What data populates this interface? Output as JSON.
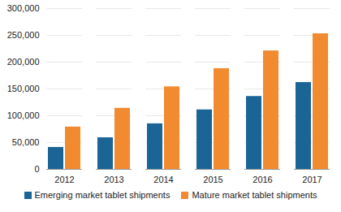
{
  "chart_data": {
    "type": "bar",
    "categories": [
      "2012",
      "2013",
      "2014",
      "2015",
      "2016",
      "2017"
    ],
    "series": [
      {
        "name": "Emerging market tablet shipments",
        "color": "#1a6496",
        "values": [
          41000,
          59000,
          85000,
          111000,
          136000,
          162000
        ]
      },
      {
        "name": "Mature market tablet shipments",
        "color": "#f28a30",
        "values": [
          79000,
          114000,
          154000,
          188000,
          221000,
          253000
        ]
      }
    ],
    "ylim": [
      0,
      300000
    ],
    "yticks": [
      0,
      {
        "value": 50000,
        "label": "50,000"
      },
      {
        "value": 100000,
        "label": "100,000"
      },
      {
        "value": 150000,
        "label": "150,000"
      },
      {
        "value": 200000,
        "label": "200,000"
      },
      {
        "value": 250000,
        "label": "250,000"
      },
      {
        "value": 300000,
        "label": "300,000"
      }
    ],
    "grid": true,
    "legend": "bottom"
  }
}
